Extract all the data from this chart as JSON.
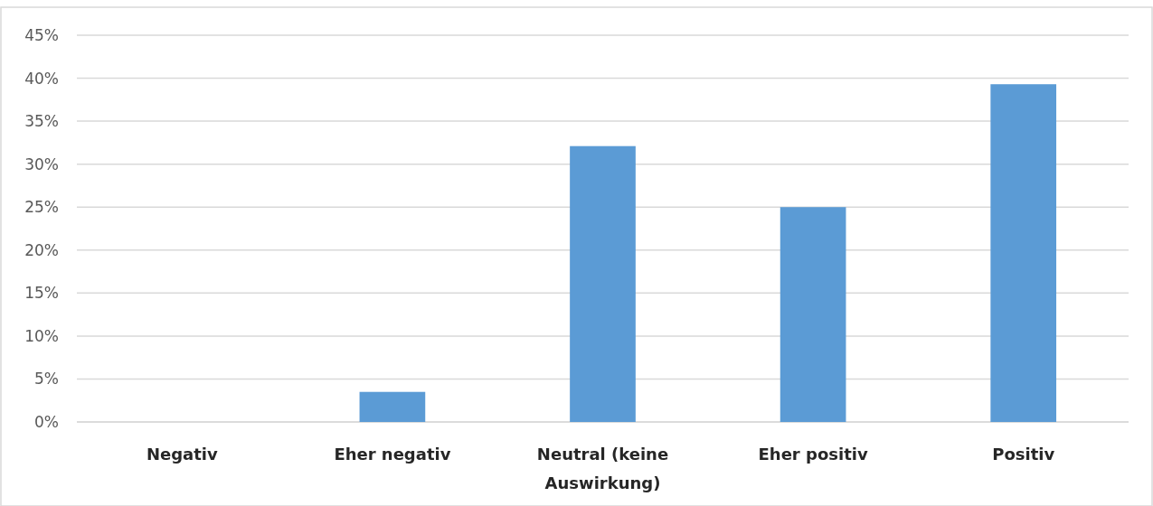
{
  "chart_data": {
    "type": "bar",
    "categories": [
      "Negativ",
      "Eher negativ",
      "Neutral (keine Auswirkung)",
      "Eher positiv",
      "Positiv"
    ],
    "values": [
      0,
      3.5,
      32.1,
      25,
      39.3
    ],
    "color": "#5b9bd5",
    "ylim": [
      0,
      45
    ],
    "yticks": [
      {
        "value": 0,
        "label": "0%"
      },
      {
        "value": 5,
        "label": "5%"
      },
      {
        "value": 10,
        "label": "10%"
      },
      {
        "value": 15,
        "label": "15%"
      },
      {
        "value": 20,
        "label": "20%"
      },
      {
        "value": 25,
        "label": "25%"
      },
      {
        "value": 30,
        "label": "30%"
      },
      {
        "value": 35,
        "label": "35%"
      },
      {
        "value": 40,
        "label": "40%"
      },
      {
        "value": 45,
        "label": "45%"
      }
    ],
    "grid": "y"
  }
}
